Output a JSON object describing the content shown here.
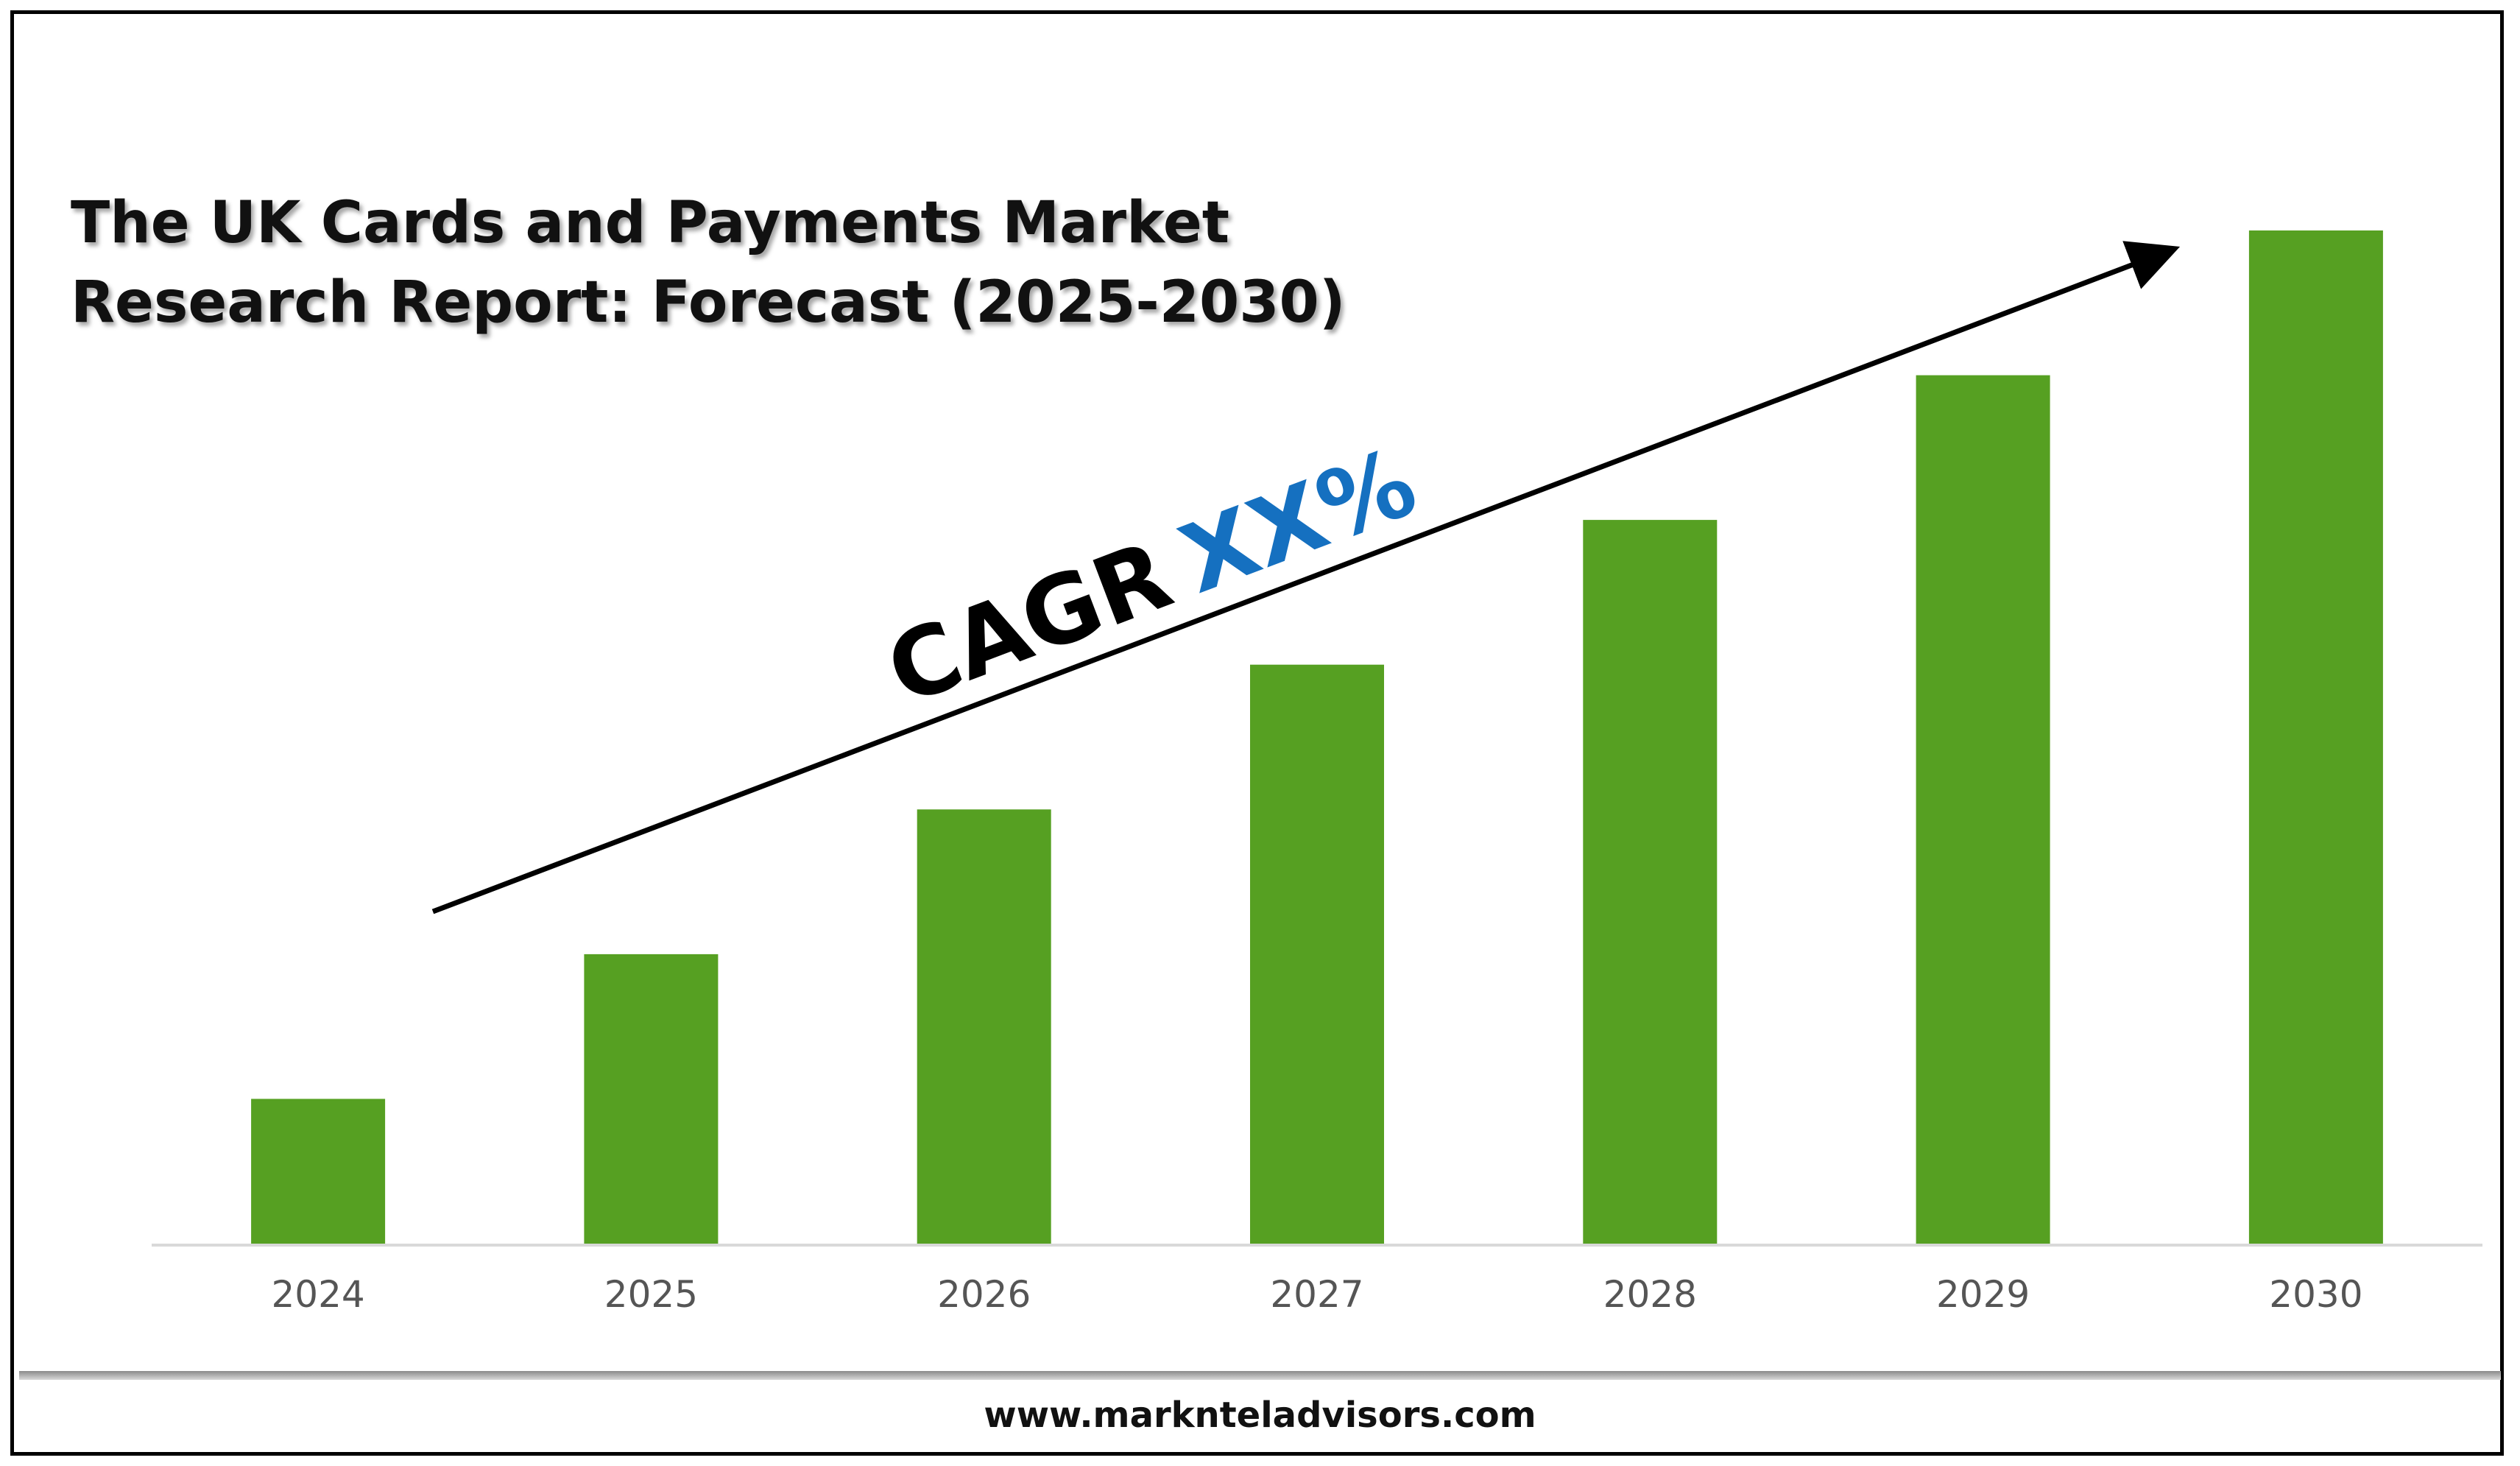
{
  "chart_data": {
    "type": "bar",
    "title_lines": [
      "The UK Cards and Payments Market",
      "Research Report: Forecast (2025-2030)"
    ],
    "categories": [
      "2024",
      "2025",
      "2026",
      "2027",
      "2028",
      "2029",
      "2030"
    ],
    "values": [
      1,
      2,
      3,
      4,
      5,
      6,
      7
    ],
    "ylim": [
      0,
      7
    ],
    "bar_color": "#56a022",
    "axis_color": "#d9d9d9",
    "annotation": {
      "prefix": "CAGR",
      "value": "XX%",
      "prefix_color": "#000000",
      "value_color": "#1570c0",
      "arrow": "trend arrow rising left to right"
    },
    "grid": false,
    "legend": "none"
  },
  "footer": {
    "url": "www.marknteladvisors.com"
  }
}
